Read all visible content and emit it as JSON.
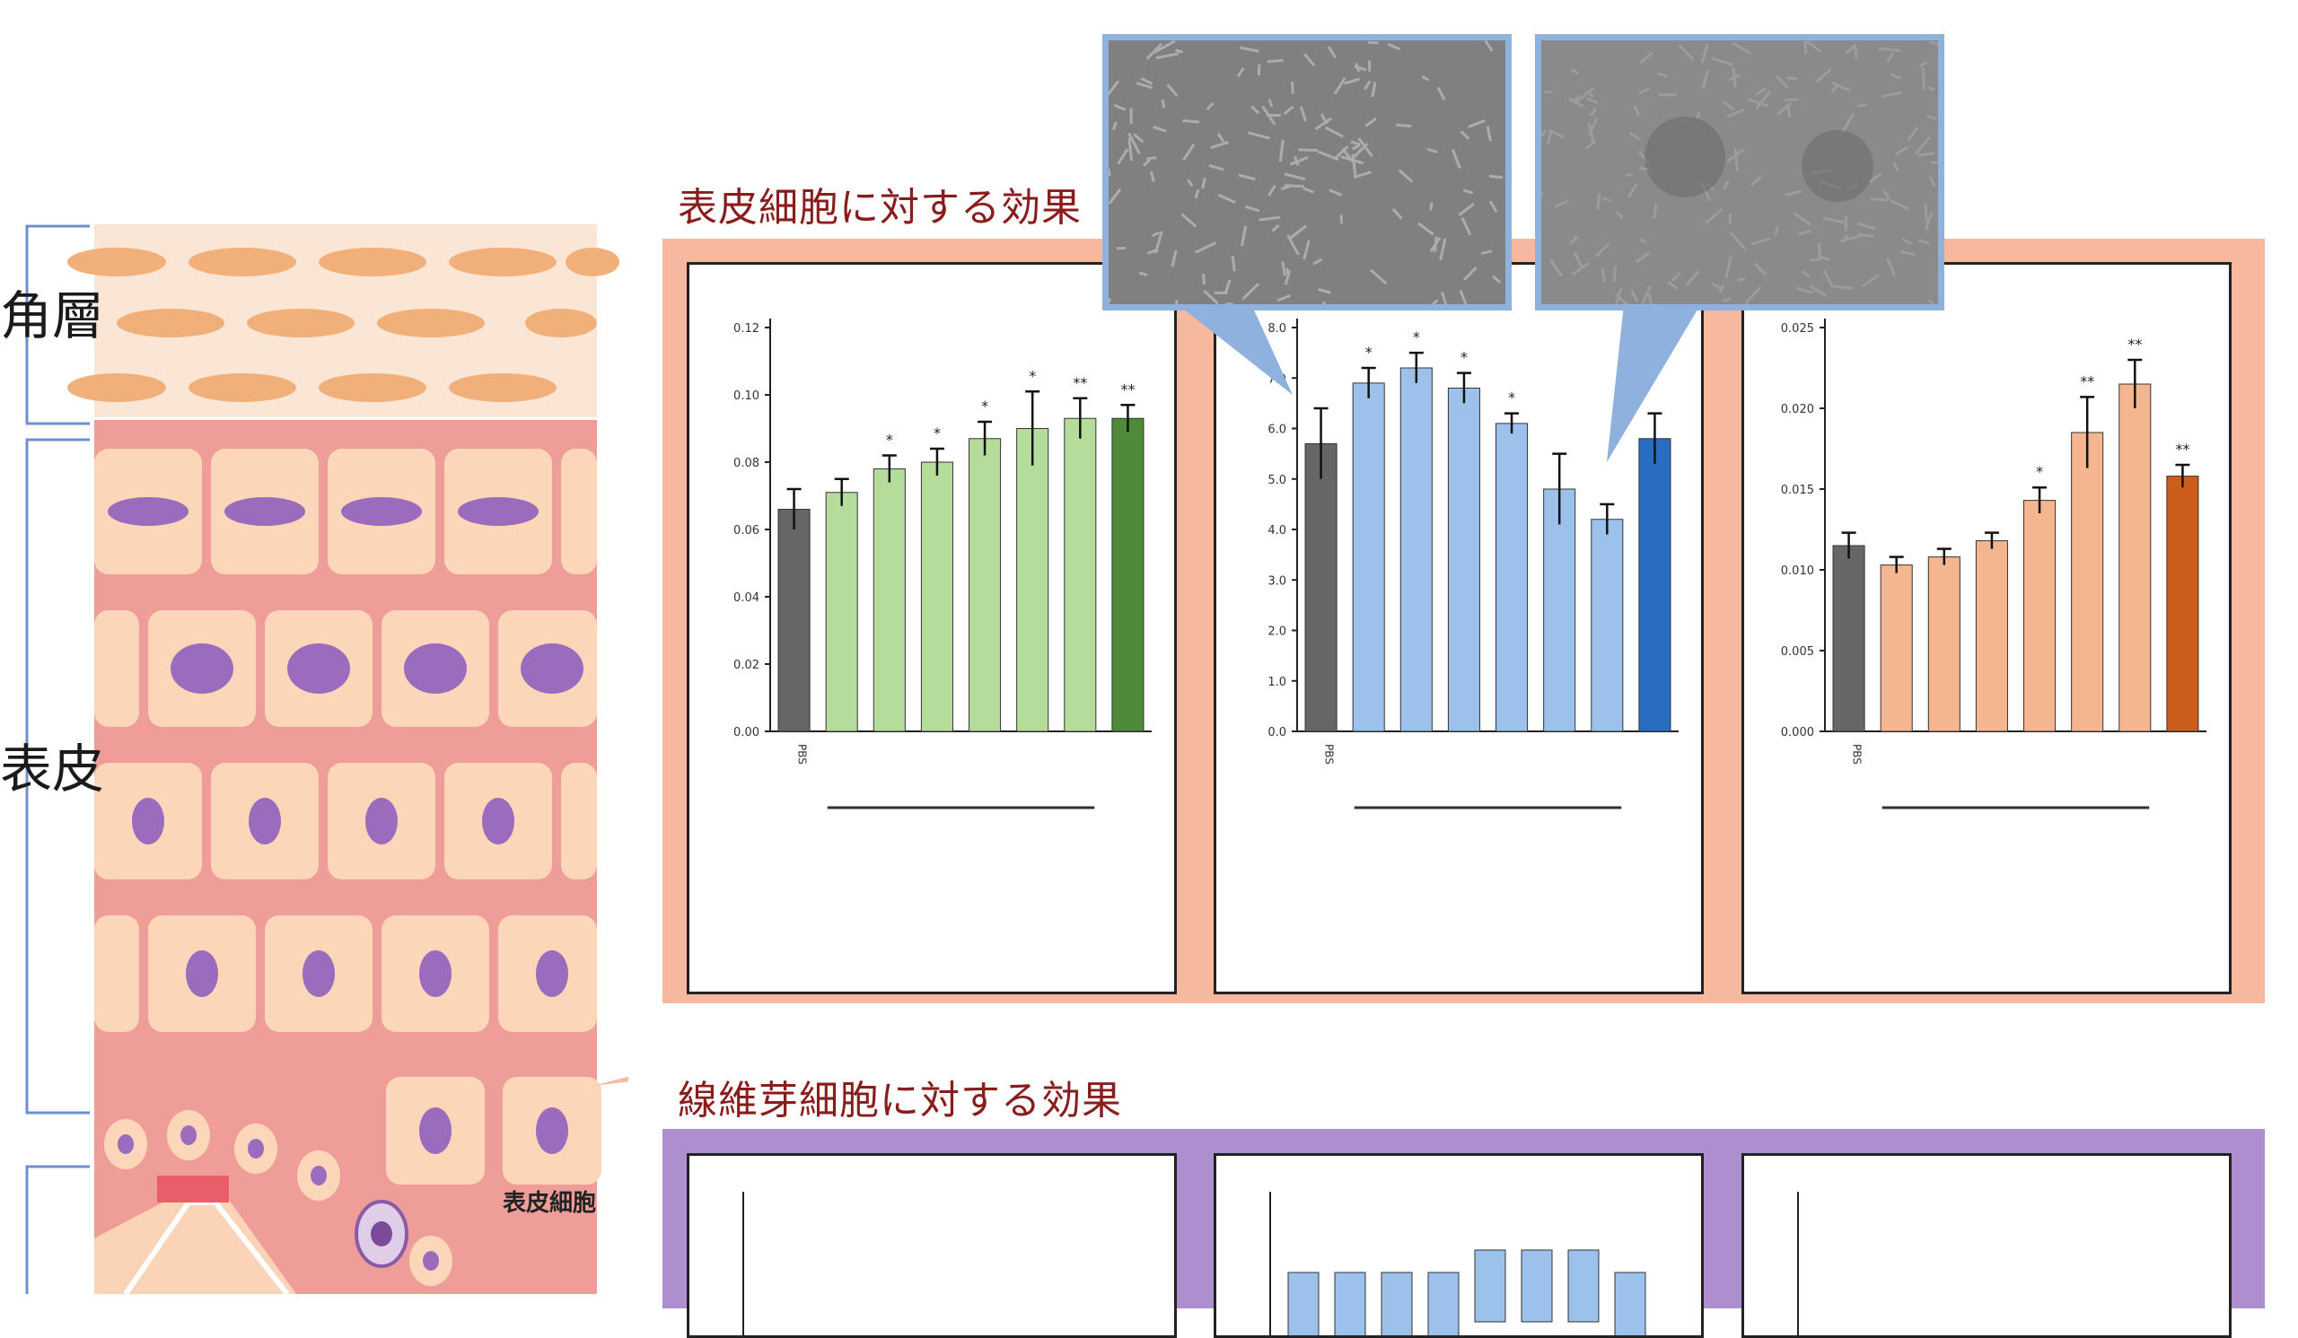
{
  "labels": {
    "stratum_corneum": "角層",
    "epidermis": "表皮",
    "epidermal_cell": "表皮細胞"
  },
  "sections": {
    "epidermal_title": "表皮細胞に対する効果",
    "fibroblast_title": "線維芽細胞に対する効果"
  },
  "colors": {
    "green_bars": [
      "#666666",
      "#b6dc9c",
      "#b6dc9c",
      "#b6dc9c",
      "#b6dc9c",
      "#b6dc9c",
      "#b6dc9c",
      "#4f8a3a"
    ],
    "blue_bars": [
      "#666666",
      "#9cc1ea",
      "#9cc1ea",
      "#9cc1ea",
      "#9cc1ea",
      "#9cc1ea",
      "#9cc1ea",
      "#2a6cbf"
    ],
    "orange_bars": [
      "#666666",
      "#f4b690",
      "#f4b690",
      "#f4b690",
      "#f4b690",
      "#f4b690",
      "#f4b690",
      "#cc5e1b"
    ],
    "fib_bars": "#9cc1ea"
  },
  "chart_data": [
    {
      "type": "bar",
      "categories": [
        "PBS",
        "",
        "",
        "",
        "",
        "",
        "",
        ""
      ],
      "values": [
        0.066,
        0.071,
        0.078,
        0.08,
        0.087,
        0.09,
        0.093,
        0.093
      ],
      "errors": [
        0.006,
        0.004,
        0.004,
        0.004,
        0.005,
        0.011,
        0.006,
        0.004
      ],
      "sig": [
        "",
        "",
        "*",
        "*",
        "*",
        "*",
        "**",
        "**"
      ],
      "ylim": [
        0,
        0.12
      ],
      "yticks": [
        "0.00",
        "0.02",
        "0.04",
        "0.06",
        "0.08",
        "0.10",
        "0.12"
      ],
      "ylabel": "",
      "xlabel": "",
      "caption": ""
    },
    {
      "type": "bar",
      "categories": [
        "PBS",
        "",
        "",
        "",
        "",
        "",
        "",
        ""
      ],
      "values": [
        5.7,
        6.9,
        7.2,
        6.8,
        6.1,
        4.8,
        4.2,
        5.8
      ],
      "errors": [
        0.7,
        0.3,
        0.3,
        0.3,
        0.2,
        0.7,
        0.3,
        0.5
      ],
      "sig": [
        "",
        "*",
        "*",
        "*",
        "*",
        "",
        "",
        ""
      ],
      "ylim": [
        0,
        8
      ],
      "yticks": [
        "0.0",
        "1.0",
        "2.0",
        "3.0",
        "4.0",
        "5.0",
        "6.0",
        "7.0",
        "8.0"
      ],
      "ylabel": "",
      "xlabel": "",
      "caption": ""
    },
    {
      "type": "bar",
      "categories": [
        "PBS",
        "",
        "",
        "",
        "",
        "",
        "",
        ""
      ],
      "values": [
        0.0115,
        0.0103,
        0.0108,
        0.0118,
        0.0143,
        0.0185,
        0.0215,
        0.0158
      ],
      "errors": [
        0.0008,
        0.0005,
        0.0005,
        0.0005,
        0.0008,
        0.0022,
        0.0015,
        0.0007
      ],
      "sig": [
        "",
        "",
        "",
        "",
        "*",
        "**",
        "**",
        "**"
      ],
      "ylim": [
        0,
        0.025
      ],
      "yticks": [
        "0.000",
        "0.005",
        "0.010",
        "0.015",
        "0.020",
        "0.025"
      ],
      "ylabel": "",
      "xlabel": "",
      "caption": ""
    }
  ]
}
